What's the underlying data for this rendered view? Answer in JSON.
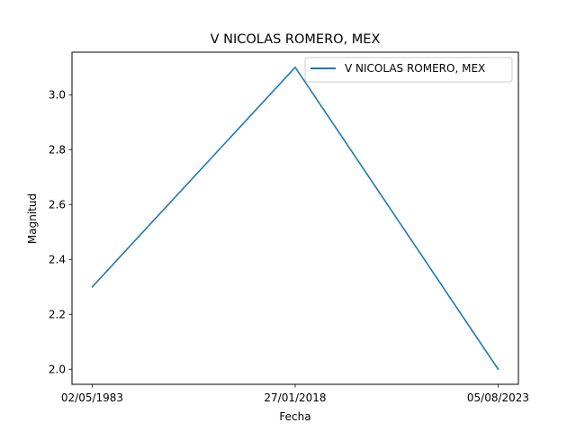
{
  "chart_data": {
    "type": "line",
    "title": "V NICOLAS ROMERO, MEX",
    "xlabel": "Fecha",
    "ylabel": "Magnitud",
    "categories": [
      "02/05/1983",
      "27/01/2018",
      "05/08/2023"
    ],
    "series": [
      {
        "name": "V NICOLAS ROMERO, MEX",
        "values": [
          2.3,
          3.1,
          2.0
        ],
        "color": "#1f77b4"
      }
    ],
    "ylim": [
      1.945,
      3.155
    ],
    "yticks": [
      2.0,
      2.2,
      2.4,
      2.6,
      2.8,
      3.0
    ],
    "ytick_labels": [
      "2.0",
      "2.2",
      "2.4",
      "2.6",
      "2.8",
      "3.0"
    ],
    "grid": false,
    "legend_position": "top-right"
  }
}
